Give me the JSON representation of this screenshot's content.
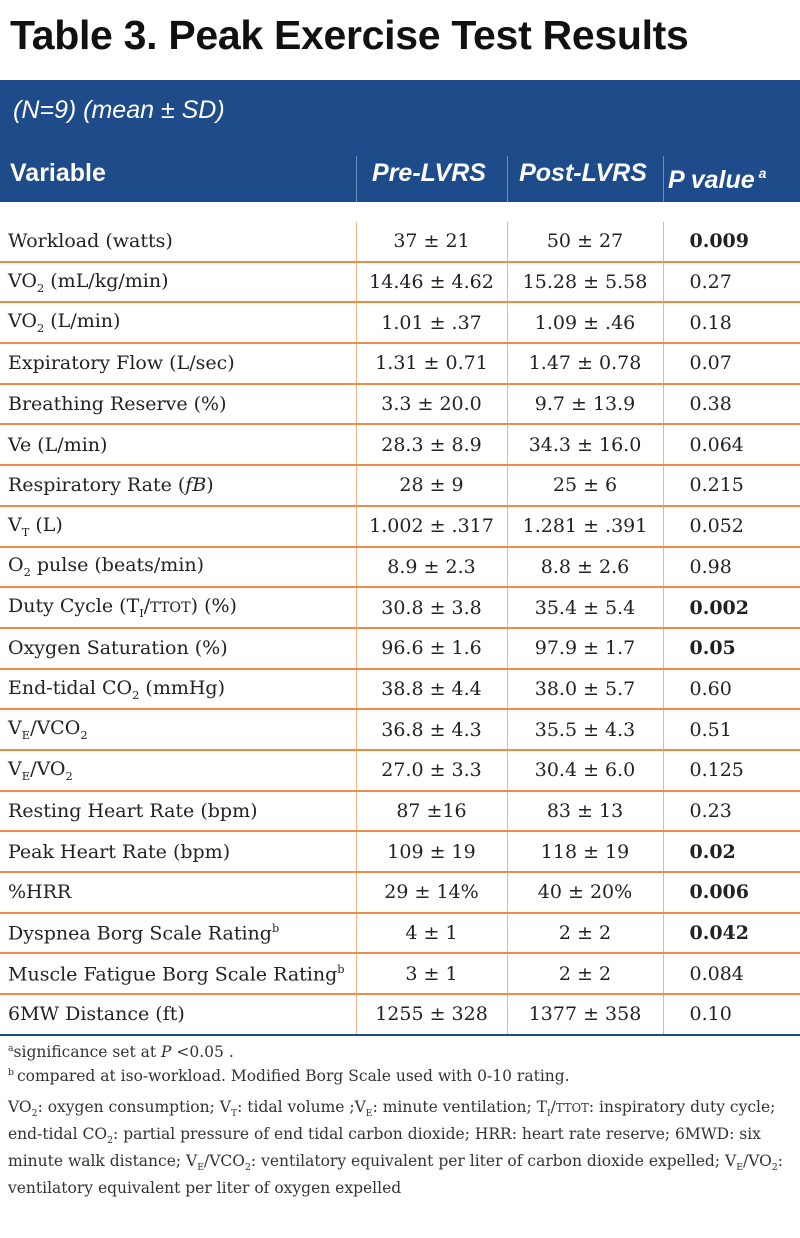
{
  "title": "Table 3. Peak Exercise Test Results",
  "subtitle": "(N=9) (mean ± SD)",
  "columns": {
    "variable": "Variable",
    "pre": "Pre-LVRS",
    "post": "Post-LVRS",
    "pvalue": "P value",
    "pvalue_sup": "a"
  },
  "rows": [
    {
      "label": "Workload (watts)",
      "pre": "37 ± 21",
      "post": "50 ± 27",
      "p": "0.009",
      "bold": true
    },
    {
      "label": "VO2 (mL/kg/min)",
      "pre": "14.46 ± 4.62",
      "post": "15.28 ± 5.58",
      "p": "0.27",
      "bold": false
    },
    {
      "label": "VO2 (L/min)",
      "pre": "1.01 ± .37",
      "post": "1.09 ± .46",
      "p": "0.18",
      "bold": false
    },
    {
      "label": "Expiratory Flow (L/sec)",
      "pre": "1.31 ± 0.71",
      "post": "1.47 ± 0.78",
      "p": "0.07",
      "bold": false
    },
    {
      "label": "Breathing Reserve (%)",
      "pre": "3.3 ± 20.0",
      "post": "9.7 ± 13.9",
      "p": "0.38",
      "bold": false
    },
    {
      "label": "Ve (L/min)",
      "pre": "28.3 ± 8.9",
      "post": "34.3 ± 16.0",
      "p": "0.064",
      "bold": false
    },
    {
      "label": "Respiratory Rate (fB)",
      "pre": "28 ± 9",
      "post": "25 ± 6",
      "p": "0.215",
      "bold": false
    },
    {
      "label": "VT (L)",
      "pre": "1.002 ± .317",
      "post": "1.281 ± .391",
      "p": "0.052",
      "bold": false
    },
    {
      "label": "O2 pulse (beats/min)",
      "pre": "8.9 ± 2.3",
      "post": "8.8 ± 2.6",
      "p": "0.98",
      "bold": false
    },
    {
      "label": "Duty Cycle (TI/TTOT) (%)",
      "pre": "30.8 ± 3.8",
      "post": "35.4 ± 5.4",
      "p": "0.002",
      "bold": true
    },
    {
      "label": "Oxygen Saturation (%)",
      "pre": "96.6 ± 1.6",
      "post": "97.9 ± 1.7",
      "p": "0.05",
      "bold": true
    },
    {
      "label": "End-tidal CO2 (mmHg)",
      "pre": "38.8 ± 4.4",
      "post": "38.0 ± 5.7",
      "p": "0.60",
      "bold": false
    },
    {
      "label": "VE/VCO2",
      "pre": "36.8 ± 4.3",
      "post": "35.5 ± 4.3",
      "p": "0.51",
      "bold": false
    },
    {
      "label": "VE/VO2",
      "pre": "27.0 ± 3.3",
      "post": "30.4 ± 6.0",
      "p": "0.125",
      "bold": false
    },
    {
      "label": "Resting Heart Rate (bpm)",
      "pre": "87 ±16",
      "post": "83 ± 13",
      "p": "0.23",
      "bold": false
    },
    {
      "label": "Peak Heart Rate (bpm)",
      "pre": "109 ± 19",
      "post": "118 ± 19",
      "p": "0.02",
      "bold": true
    },
    {
      "label": "%HRR",
      "pre": "29 ± 14%",
      "post": "40 ± 20%",
      "p": "0.006",
      "bold": true
    },
    {
      "label": "Dyspnea Borg Scale Rating",
      "label_sup": "b",
      "pre": "4 ± 1",
      "post": "2 ± 2",
      "p": "0.042",
      "bold": true
    },
    {
      "label": "Muscle Fatigue Borg Scale Rating",
      "label_sup": "b",
      "pre": "3 ± 1",
      "post": "2 ± 2",
      "p": "0.084",
      "bold": false
    },
    {
      "label": "6MW Distance (ft)",
      "pre": "1255 ± 328",
      "post": "1377 ± 358",
      "p": "0.10",
      "bold": false
    }
  ],
  "footnotes": {
    "a_marker": "a",
    "a_text_1": "significance set at ",
    "a_p": "P",
    "a_text_2": " <0.05 .",
    "b_marker": "b",
    "b_text": "compared at iso-workload. Modified Borg Scale used with 0-10 rating."
  },
  "abbreviations": "VO2: oxygen consumption; VT: tidal volume ;VE: minute ventilation; TI/TTOT: inspiratory duty cycle; end-tidal CO2: partial pressure of end tidal carbon dioxide; HRR: heart rate reserve; 6MWD: six minute walk distance; VE/VCO2: ventilatory equivalent per liter of carbon dioxide expelled; VE/VO2: ventilatory equivalent per liter of oxygen expelled",
  "colors": {
    "header_bg": "#1e4b8a",
    "row_rule": "#ee8c4a",
    "column_rule": "#f2b186"
  }
}
